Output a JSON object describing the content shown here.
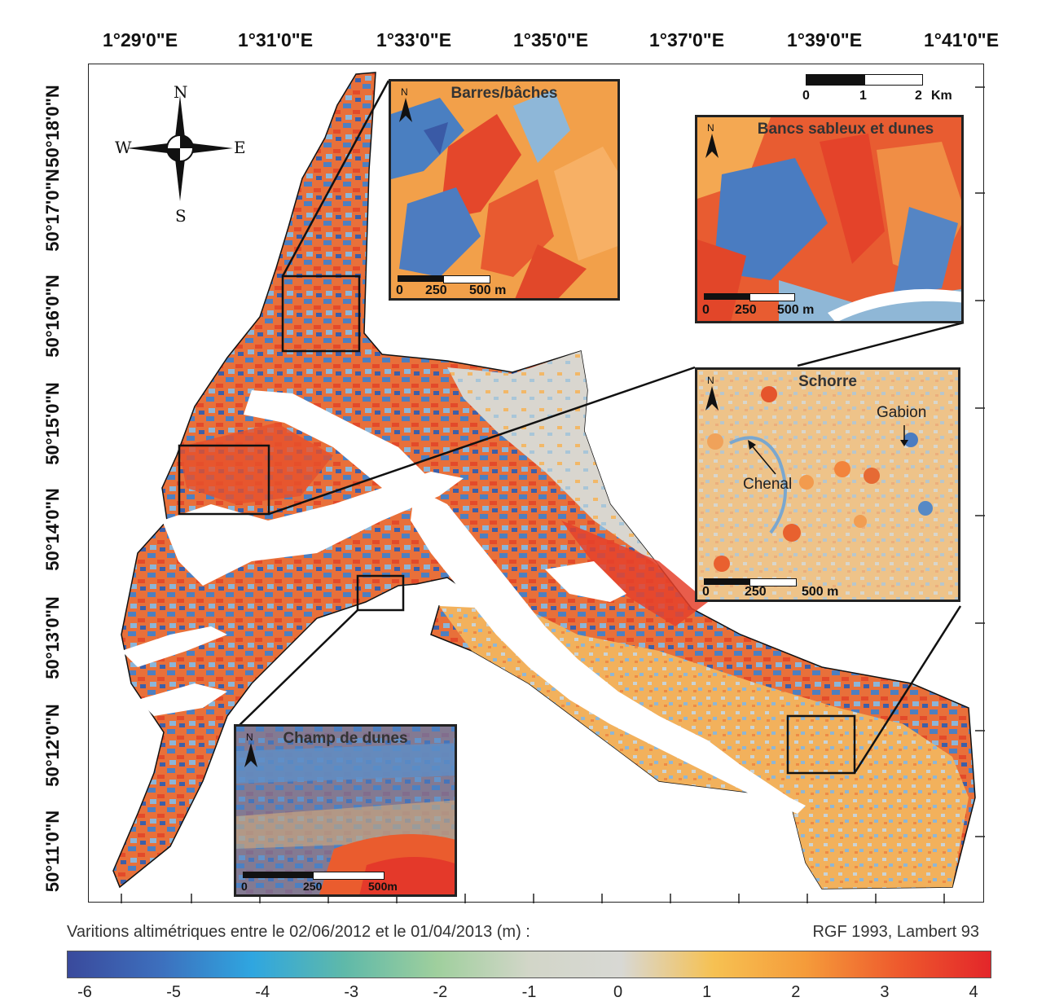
{
  "map": {
    "lon_ticks": [
      "1°29'0\"E",
      "1°31'0\"E",
      "1°33'0\"E",
      "1°35'0\"E",
      "1°37'0\"E",
      "1°39'0\"E",
      "1°41'0\"E"
    ],
    "lat_ticks": [
      "50°18'0\"N",
      "50°17'0\"N",
      "50°16'0\"N",
      "50°15'0\"N",
      "50°14'0\"N",
      "50°13'0\"N",
      "50°12'0\"N",
      "50°11'0\"N"
    ],
    "compass": {
      "n": "N",
      "s": "S",
      "e": "E",
      "w": "W"
    },
    "scalebar": {
      "labels": [
        "0",
        "1",
        "2"
      ],
      "unit": "Km"
    }
  },
  "insets": {
    "barres": {
      "title": "Barres/bâches",
      "north": "N",
      "scale": [
        "0",
        "250",
        "500 m"
      ]
    },
    "bancs": {
      "title": "Bancs sableux et dunes",
      "north": "N",
      "scale": [
        "0",
        "250",
        "500 m"
      ]
    },
    "schorre": {
      "title": "Schorre",
      "north": "N",
      "scale": [
        "0",
        "250",
        "500 m"
      ],
      "annotations": {
        "gabion": "Gabion",
        "chenal": "Chenal"
      }
    },
    "champ": {
      "title": "Champ de dunes",
      "north": "N",
      "scale": [
        "0",
        "250",
        "500m"
      ]
    }
  },
  "legend": {
    "title": "Varitions altimétriques entre le 02/06/2012 et le 01/04/2013 (m) :",
    "projection": "RGF 1993, Lambert 93",
    "ticks": [
      "-6",
      "-5",
      "-4",
      "-3",
      "-2",
      "-1",
      "0",
      "1",
      "2",
      "3",
      "4"
    ],
    "range": [
      -6,
      4
    ],
    "colors": [
      "#3a4a9c",
      "#3d6fbd",
      "#2fa6e0",
      "#5fb9a9",
      "#9fcf9d",
      "#d2d6c8",
      "#d8d8d4",
      "#f6c152",
      "#f59b3a",
      "#ee5a2d",
      "#e3262a"
    ]
  },
  "palette": {
    "red": "#e8472b",
    "orange": "#f3a04a",
    "blue": "#4a7fc1",
    "lightblue": "#8fb8d9",
    "grey": "#d4d2cc",
    "white": "#ffffff"
  }
}
